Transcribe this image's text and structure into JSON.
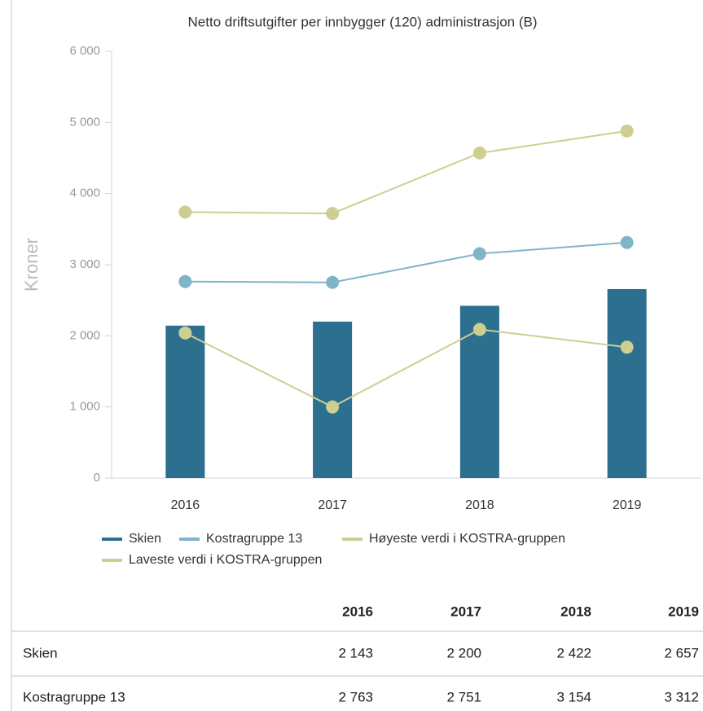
{
  "chart_data": {
    "type": "bar",
    "title": "Netto driftsutgifter per innbygger (120) administrasjon (B)",
    "y_label": "Kroner",
    "categories": [
      "2016",
      "2017",
      "2018",
      "2019"
    ],
    "ylim": [
      0,
      6000
    ],
    "yticks": [
      0,
      {
        "value": 1000,
        "label": "1 000"
      },
      {
        "value": 2000,
        "label": "2 000"
      },
      {
        "value": 3000,
        "label": "3 000"
      },
      {
        "value": 4000,
        "label": "4 000"
      },
      {
        "value": 5000,
        "label": "5 000"
      },
      {
        "value": 6000,
        "label": "6 000"
      }
    ],
    "grid": false,
    "series": [
      {
        "name": "Skien",
        "type": "bar",
        "color": "#2c6f8f",
        "values": [
          2143,
          2200,
          2422,
          2657
        ]
      },
      {
        "name": "Kostragruppe 13",
        "type": "line",
        "color": "#7fb4c9",
        "values": [
          2763,
          2751,
          3154,
          3312
        ]
      },
      {
        "name": "Høyeste verdi i KOSTRA-gruppen",
        "type": "line",
        "color": "#cdcf92",
        "values": [
          3740,
          3720,
          4570,
          4880
        ]
      },
      {
        "name": "Laveste verdi i KOSTRA-gruppen",
        "type": "line",
        "color": "#cdcf92",
        "values": [
          2040,
          1000,
          2090,
          1840
        ]
      }
    ]
  },
  "table": {
    "columns": [
      "2016",
      "2017",
      "2018",
      "2019"
    ],
    "rows": [
      [
        "Skien",
        "2 143",
        "2 200",
        "2 422",
        "2 657"
      ],
      [
        "Kostragruppe 13",
        "2 763",
        "2 751",
        "3 154",
        "3 312"
      ]
    ]
  }
}
